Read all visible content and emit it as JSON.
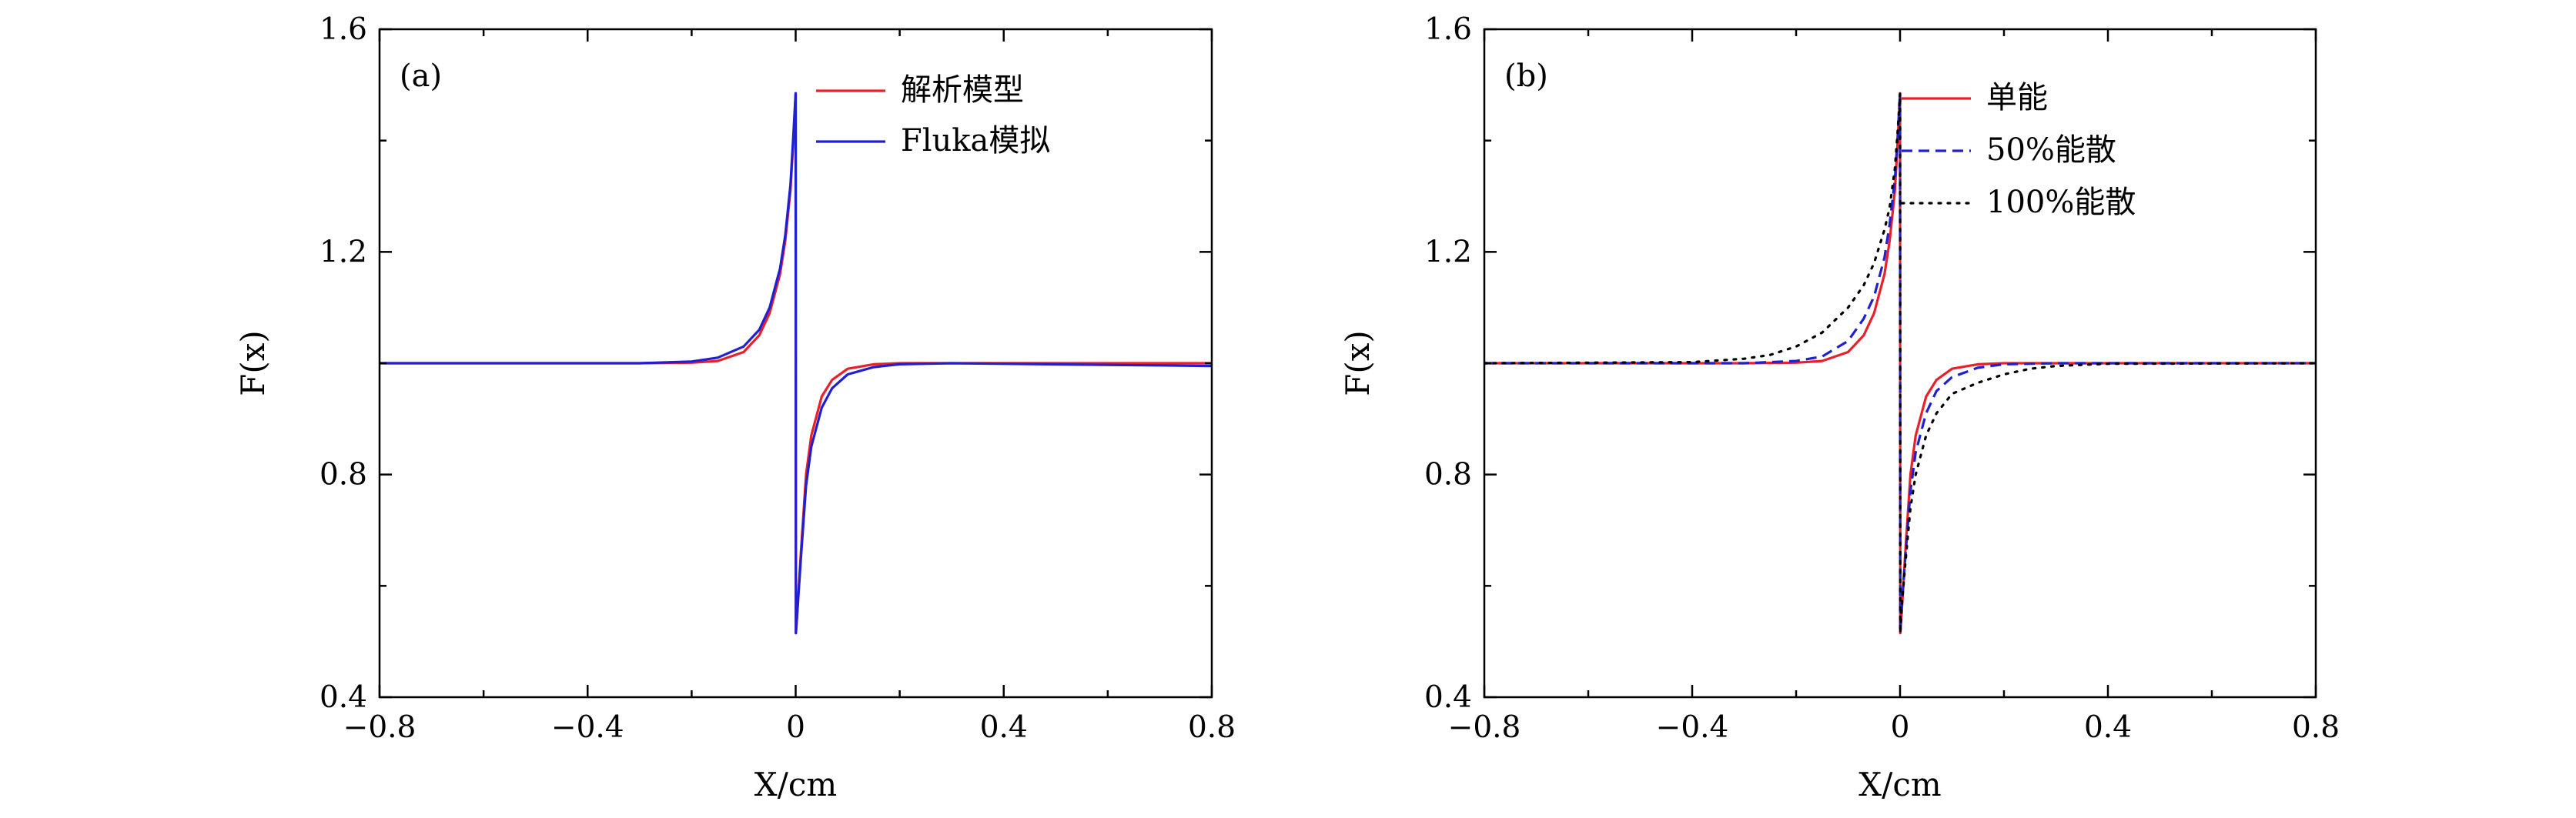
{
  "chart_data": [
    {
      "type": "line",
      "panel_label": "(a)",
      "xlabel": "X/cm",
      "ylabel": "F(x)",
      "xlim": [
        -0.8,
        0.8
      ],
      "ylim": [
        0.4,
        1.6
      ],
      "x_ticks": [
        -0.8,
        -0.4,
        0,
        0.4,
        0.8
      ],
      "x_tick_labels": [
        "−0.8",
        "−0.4",
        "0",
        "0.4",
        "0.8"
      ],
      "y_ticks": [
        0.4,
        0.8,
        1.2,
        1.6
      ],
      "y_tick_labels": [
        "0.4",
        "0.8",
        "1.2",
        "1.6"
      ],
      "legend_position": "top-right",
      "series": [
        {
          "name": "解析模型",
          "color": "#e8202a",
          "dash": "solid",
          "x": [
            -0.8,
            -0.3,
            -0.2,
            -0.15,
            -0.1,
            -0.07,
            -0.05,
            -0.03,
            -0.02,
            -0.01,
            -0.005,
            0,
            0.0005,
            0.003,
            0.01,
            0.02,
            0.03,
            0.05,
            0.07,
            0.1,
            0.15,
            0.2,
            0.3,
            0.8
          ],
          "y": [
            1.0,
            1.0,
            1.001,
            1.004,
            1.02,
            1.05,
            1.09,
            1.16,
            1.22,
            1.31,
            1.39,
            1.485,
            0.515,
            0.55,
            0.66,
            0.8,
            0.87,
            0.94,
            0.97,
            0.99,
            0.998,
            1.0,
            1.0,
            1.0
          ]
        },
        {
          "name": "Fluka模拟",
          "color": "#2020d0",
          "dash": "solid",
          "x": [
            -0.8,
            -0.3,
            -0.2,
            -0.15,
            -0.1,
            -0.07,
            -0.05,
            -0.03,
            -0.02,
            -0.01,
            -0.005,
            0,
            0.0005,
            0.003,
            0.01,
            0.02,
            0.03,
            0.05,
            0.07,
            0.1,
            0.15,
            0.2,
            0.3,
            0.8
          ],
          "y": [
            1.0,
            1.0,
            1.003,
            1.01,
            1.03,
            1.06,
            1.1,
            1.17,
            1.23,
            1.32,
            1.4,
            1.485,
            0.515,
            0.55,
            0.65,
            0.78,
            0.85,
            0.92,
            0.955,
            0.98,
            0.993,
            0.998,
            1.0,
            0.995
          ]
        }
      ]
    },
    {
      "type": "line",
      "panel_label": "(b)",
      "xlabel": "X/cm",
      "ylabel": "F(x)",
      "xlim": [
        -0.8,
        0.8
      ],
      "ylim": [
        0.4,
        1.6
      ],
      "x_ticks": [
        -0.8,
        -0.4,
        0,
        0.4,
        0.8
      ],
      "x_tick_labels": [
        "−0.8",
        "−0.4",
        "0",
        "0.4",
        "0.8"
      ],
      "y_ticks": [
        0.4,
        0.8,
        1.2,
        1.6
      ],
      "y_tick_labels": [
        "0.4",
        "0.8",
        "1.2",
        "1.6"
      ],
      "legend_position": "top-right",
      "series": [
        {
          "name": "单能",
          "color": "#e8202a",
          "dash": "solid",
          "x": [
            -0.8,
            -0.3,
            -0.2,
            -0.15,
            -0.1,
            -0.07,
            -0.05,
            -0.03,
            -0.02,
            -0.01,
            -0.005,
            0,
            0.0005,
            0.003,
            0.01,
            0.02,
            0.03,
            0.05,
            0.07,
            0.1,
            0.15,
            0.2,
            0.3,
            0.8
          ],
          "y": [
            1.0,
            1.0,
            1.001,
            1.004,
            1.02,
            1.05,
            1.09,
            1.16,
            1.22,
            1.31,
            1.39,
            1.485,
            0.515,
            0.55,
            0.66,
            0.8,
            0.87,
            0.94,
            0.97,
            0.99,
            0.998,
            1.0,
            1.0,
            1.0
          ]
        },
        {
          "name": "50%能散",
          "color": "#2020d0",
          "dash": "dashed",
          "x": [
            -0.8,
            -0.3,
            -0.2,
            -0.15,
            -0.1,
            -0.07,
            -0.05,
            -0.03,
            -0.02,
            -0.01,
            -0.005,
            0,
            0.0005,
            0.003,
            0.01,
            0.02,
            0.03,
            0.05,
            0.07,
            0.1,
            0.15,
            0.2,
            0.3,
            0.8
          ],
          "y": [
            1.0,
            1.0,
            1.004,
            1.012,
            1.04,
            1.08,
            1.12,
            1.19,
            1.25,
            1.33,
            1.4,
            1.485,
            0.515,
            0.56,
            0.65,
            0.77,
            0.84,
            0.91,
            0.95,
            0.975,
            0.992,
            0.998,
            1.0,
            1.0
          ]
        },
        {
          "name": "100%能散",
          "color": "#000000",
          "dash": "dotted",
          "x": [
            -0.8,
            -0.4,
            -0.3,
            -0.25,
            -0.2,
            -0.15,
            -0.1,
            -0.07,
            -0.05,
            -0.03,
            -0.02,
            -0.01,
            -0.005,
            0,
            0.0005,
            0.003,
            0.01,
            0.02,
            0.03,
            0.05,
            0.07,
            0.1,
            0.15,
            0.2,
            0.25,
            0.3,
            0.4,
            0.8
          ],
          "y": [
            1.0,
            1.002,
            1.008,
            1.015,
            1.03,
            1.055,
            1.1,
            1.14,
            1.18,
            1.24,
            1.28,
            1.35,
            1.41,
            1.485,
            0.515,
            0.56,
            0.64,
            0.74,
            0.8,
            0.87,
            0.91,
            0.945,
            0.965,
            0.98,
            0.99,
            0.995,
            0.999,
            1.0
          ]
        }
      ]
    }
  ]
}
